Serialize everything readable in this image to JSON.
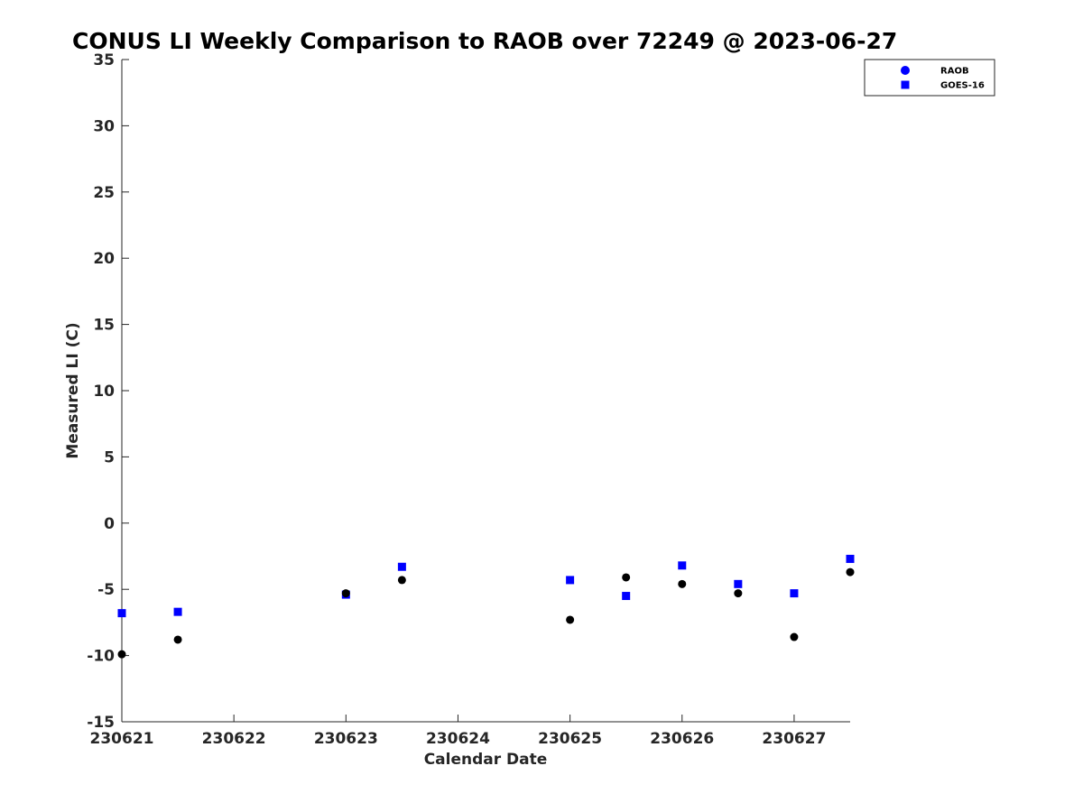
{
  "chart_data": {
    "type": "scatter",
    "title": "CONUS LI Weekly Comparison to RAOB over 72249 @ 2023-06-27",
    "xlabel": "Calendar Date",
    "ylabel": "Measured LI (C)",
    "xlim": [
      230621,
      230627.5
    ],
    "ylim": [
      -15,
      35
    ],
    "x_ticks": [
      230621,
      230622,
      230623,
      230624,
      230625,
      230626,
      230627
    ],
    "x_tick_labels": [
      "230621",
      "230622",
      "230623",
      "230624",
      "230625",
      "230626",
      "230627"
    ],
    "y_ticks": [
      -15,
      -10,
      -5,
      0,
      5,
      10,
      15,
      20,
      25,
      30,
      35
    ],
    "y_tick_labels": [
      "-15",
      "-10",
      "-5",
      "0",
      "5",
      "10",
      "15",
      "20",
      "25",
      "30",
      "35"
    ],
    "grid": false,
    "legend_position": "top-right",
    "series": [
      {
        "name": "RAOB",
        "marker": "circle",
        "legend_color": "#0000ff",
        "point_color": "#000000",
        "x": [
          230621,
          230621.5,
          230623,
          230623.5,
          230625,
          230625.5,
          230626,
          230626.5,
          230627,
          230627.5
        ],
        "values": [
          -9.9,
          -8.8,
          -5.3,
          -4.3,
          -7.3,
          -4.1,
          -4.6,
          -5.3,
          -8.6,
          -3.7
        ]
      },
      {
        "name": "GOES-16",
        "marker": "square",
        "legend_color": "#0000ff",
        "point_color": "#0000ff",
        "x": [
          230621,
          230621.5,
          230623,
          230623.5,
          230625,
          230625.5,
          230626,
          230626.5,
          230627,
          230627.5
        ],
        "values": [
          -6.8,
          -6.7,
          -5.4,
          -3.3,
          -4.3,
          -5.5,
          -3.2,
          -4.6,
          -5.3,
          -2.7
        ]
      }
    ]
  }
}
